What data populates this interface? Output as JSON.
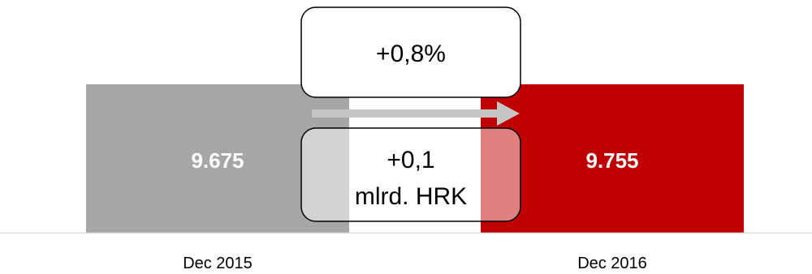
{
  "chart_data": {
    "type": "bar",
    "categories": [
      "Dec 2015",
      "Dec 2016"
    ],
    "values": [
      9675,
      9755
    ],
    "value_labels": [
      "9.675",
      "9.755"
    ],
    "colors": [
      "#a6a6a6",
      "#c00000"
    ],
    "grid": false,
    "annotations": {
      "percent_change": "+0,8%",
      "absolute_change_line1": "+0,1",
      "absolute_change_line2": "mlrd. HRK"
    }
  }
}
